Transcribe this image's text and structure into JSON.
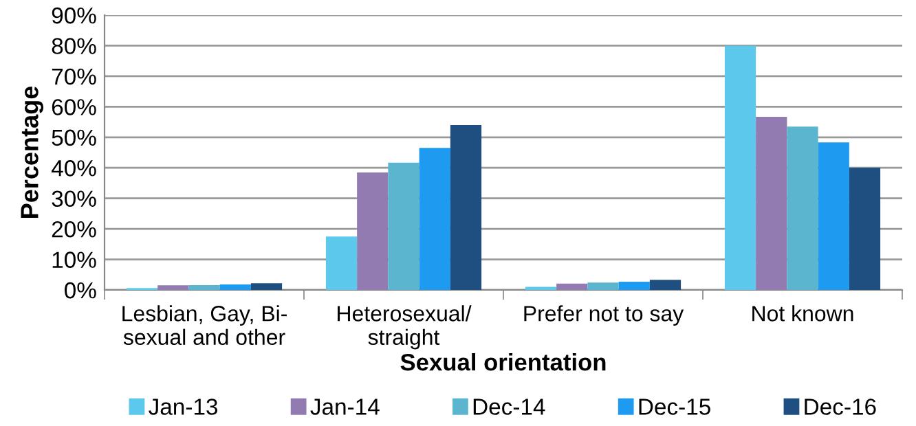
{
  "chart_data": {
    "type": "bar",
    "xlabel": "Sexual orientation",
    "ylabel": "Percentage",
    "categories": [
      "Lesbian, Gay, Bi-\nsexual and other",
      "Heterosexual/\nstraight",
      "Prefer not to say",
      "Not known"
    ],
    "series": [
      {
        "name": "Jan-13",
        "color": "#5bc8ec",
        "values": [
          0.6,
          17.5,
          1.0,
          80
        ]
      },
      {
        "name": "Jan-14",
        "color": "#927bb0",
        "values": [
          1.5,
          38.5,
          2.1,
          56.7
        ]
      },
      {
        "name": "Dec-14",
        "color": "#5bb5ce",
        "values": [
          1.6,
          41.7,
          2.4,
          53.5
        ]
      },
      {
        "name": "Dec-15",
        "color": "#1e9af0",
        "values": [
          1.8,
          46.5,
          2.7,
          48.3
        ]
      },
      {
        "name": "Dec-16",
        "color": "#1f4e80",
        "values": [
          2.2,
          54,
          3.3,
          40
        ]
      }
    ],
    "ylim": [
      0,
      90
    ],
    "yticks": [
      {
        "value": 0,
        "label": "0%"
      },
      {
        "value": 10,
        "label": "10%"
      },
      {
        "value": 20,
        "label": "20%"
      },
      {
        "value": 30,
        "label": "30%"
      },
      {
        "value": 40,
        "label": "40%"
      },
      {
        "value": 50,
        "label": "50%"
      },
      {
        "value": 60,
        "label": "60%"
      },
      {
        "value": 70,
        "label": "70%"
      },
      {
        "value": 80,
        "label": "80%"
      },
      {
        "value": 90,
        "label": "90%"
      }
    ],
    "grid": "y",
    "legend": "bottom"
  }
}
